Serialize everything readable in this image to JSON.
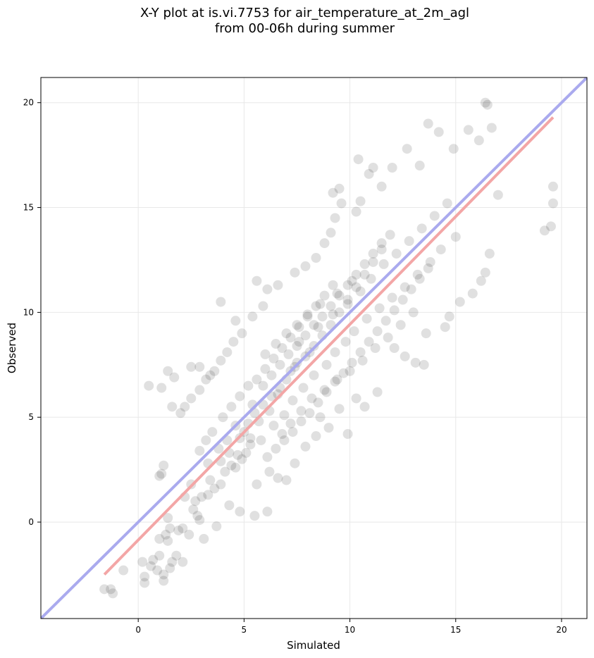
{
  "chart_data": {
    "type": "scatter",
    "title_lines": [
      "X-Y plot at is.vi.7753 for air_temperature_at_2m_agl",
      "from 00-06h during summer"
    ],
    "xlabel": "Simulated",
    "ylabel": "Observed",
    "xlim": [
      -4.6,
      21.2
    ],
    "ylim": [
      -4.6,
      21.2
    ],
    "xticks": [
      0,
      5,
      10,
      15,
      20
    ],
    "yticks": [
      0,
      5,
      10,
      15,
      20
    ],
    "grid": true,
    "point_color": "#000000",
    "point_alpha": 0.12,
    "identity_line": {
      "x": [
        -4.6,
        21.2
      ],
      "y": [
        -4.6,
        21.2
      ],
      "color": "#aaaaee"
    },
    "regression_line": {
      "x": [
        -1.6,
        19.6
      ],
      "y": [
        -2.5,
        19.3
      ],
      "color": "#f3a6a6"
    },
    "series": [
      {
        "points": [
          [
            -1.6,
            -3.2
          ],
          [
            -1.2,
            -3.4
          ],
          [
            -1.3,
            -3.2
          ],
          [
            -0.7,
            -2.3
          ],
          [
            0.2,
            -1.9
          ],
          [
            0.3,
            -2.6
          ],
          [
            0.3,
            -2.9
          ],
          [
            0.6,
            -2.1
          ],
          [
            0.7,
            -1.8
          ],
          [
            0.9,
            -2.3
          ],
          [
            1.0,
            -1.6
          ],
          [
            1.2,
            -2.5
          ],
          [
            1.2,
            -2.8
          ],
          [
            1.5,
            -2.2
          ],
          [
            1.6,
            -1.9
          ],
          [
            1.8,
            -1.6
          ],
          [
            2.1,
            -1.9
          ],
          [
            1.0,
            -0.8
          ],
          [
            1.4,
            -0.9
          ],
          [
            1.3,
            -0.6
          ],
          [
            1.5,
            -0.3
          ],
          [
            1.9,
            -0.4
          ],
          [
            2.1,
            -0.3
          ],
          [
            2.4,
            -0.6
          ],
          [
            1.4,
            0.2
          ],
          [
            1.0,
            2.2
          ],
          [
            1.1,
            2.3
          ],
          [
            1.2,
            2.7
          ],
          [
            2.6,
            0.6
          ],
          [
            2.8,
            0.3
          ],
          [
            3.1,
            -0.8
          ],
          [
            3.7,
            -0.2
          ],
          [
            2.9,
            0.1
          ],
          [
            2.7,
            1.0
          ],
          [
            3.0,
            1.2
          ],
          [
            3.3,
            1.3
          ],
          [
            3.6,
            1.6
          ],
          [
            3.9,
            1.8
          ],
          [
            4.1,
            2.4
          ],
          [
            4.4,
            2.7
          ],
          [
            4.6,
            2.6
          ],
          [
            4.9,
            3.0
          ],
          [
            5.1,
            3.3
          ],
          [
            5.3,
            3.7
          ],
          [
            4.3,
            0.8
          ],
          [
            4.8,
            0.5
          ],
          [
            5.5,
            0.3
          ],
          [
            6.1,
            0.5
          ],
          [
            5.6,
            1.8
          ],
          [
            6.2,
            2.4
          ],
          [
            6.6,
            2.1
          ],
          [
            7.0,
            2.0
          ],
          [
            7.4,
            2.8
          ],
          [
            7.9,
            3.6
          ],
          [
            8.4,
            4.1
          ],
          [
            9.0,
            4.5
          ],
          [
            9.9,
            4.2
          ],
          [
            8.6,
            5.0
          ],
          [
            9.5,
            5.4
          ],
          [
            10.3,
            5.9
          ],
          [
            10.7,
            5.5
          ],
          [
            11.3,
            6.2
          ],
          [
            2.2,
            5.5
          ],
          [
            2.5,
            5.9
          ],
          [
            2.9,
            6.3
          ],
          [
            3.2,
            6.8
          ],
          [
            3.6,
            7.2
          ],
          [
            3.9,
            7.7
          ],
          [
            4.2,
            8.1
          ],
          [
            4.5,
            8.6
          ],
          [
            4.9,
            9.0
          ],
          [
            0.5,
            6.5
          ],
          [
            1.1,
            6.4
          ],
          [
            1.6,
            5.5
          ],
          [
            2.0,
            5.2
          ],
          [
            1.4,
            7.2
          ],
          [
            1.7,
            6.9
          ],
          [
            2.5,
            7.4
          ],
          [
            2.9,
            7.4
          ],
          [
            3.4,
            7.0
          ],
          [
            3.9,
            10.5
          ],
          [
            4.6,
            9.6
          ],
          [
            5.4,
            9.8
          ],
          [
            5.9,
            10.3
          ],
          [
            6.1,
            11.1
          ],
          [
            5.6,
            11.5
          ],
          [
            6.6,
            11.3
          ],
          [
            7.4,
            11.9
          ],
          [
            7.9,
            12.2
          ],
          [
            8.4,
            12.6
          ],
          [
            8.8,
            13.3
          ],
          [
            9.1,
            13.8
          ],
          [
            9.3,
            14.5
          ],
          [
            9.6,
            15.2
          ],
          [
            9.2,
            15.7
          ],
          [
            9.5,
            15.9
          ],
          [
            10.3,
            14.8
          ],
          [
            10.5,
            15.3
          ],
          [
            10.9,
            16.6
          ],
          [
            11.1,
            16.9
          ],
          [
            10.4,
            17.3
          ],
          [
            11.5,
            16.0
          ],
          [
            12.0,
            16.9
          ],
          [
            12.7,
            17.8
          ],
          [
            13.3,
            17.0
          ],
          [
            13.7,
            19.0
          ],
          [
            14.2,
            18.6
          ],
          [
            14.9,
            17.8
          ],
          [
            15.6,
            18.7
          ],
          [
            16.1,
            18.2
          ],
          [
            16.4,
            20.0
          ],
          [
            16.5,
            19.9
          ],
          [
            16.7,
            18.8
          ],
          [
            17.0,
            15.6
          ],
          [
            16.6,
            12.8
          ],
          [
            16.4,
            11.9
          ],
          [
            16.2,
            11.5
          ],
          [
            15.8,
            10.9
          ],
          [
            15.2,
            10.5
          ],
          [
            14.7,
            9.8
          ],
          [
            14.5,
            9.3
          ],
          [
            13.6,
            9.0
          ],
          [
            13.1,
            7.6
          ],
          [
            13.5,
            7.5
          ],
          [
            12.6,
            7.9
          ],
          [
            12.1,
            8.3
          ],
          [
            19.2,
            13.9
          ],
          [
            19.5,
            14.1
          ],
          [
            19.6,
            15.2
          ],
          [
            19.6,
            16.0
          ],
          [
            8.1,
            8.1
          ],
          [
            7.5,
            7.6
          ],
          [
            7.2,
            7.2
          ],
          [
            6.7,
            6.4
          ],
          [
            6.3,
            6.0
          ],
          [
            5.9,
            5.6
          ],
          [
            5.5,
            5.2
          ],
          [
            5.2,
            4.7
          ],
          [
            7.6,
            8.6
          ],
          [
            8.5,
            9.3
          ],
          [
            9.2,
            9.9
          ],
          [
            9.9,
            10.4
          ],
          [
            10.5,
            11.0
          ],
          [
            11.0,
            11.6
          ],
          [
            11.6,
            12.3
          ],
          [
            12.2,
            12.8
          ],
          [
            12.8,
            13.4
          ],
          [
            13.4,
            14.0
          ],
          [
            14.0,
            14.6
          ],
          [
            14.6,
            15.2
          ],
          [
            6.0,
            8.0
          ],
          [
            6.5,
            8.5
          ],
          [
            7.0,
            9.0
          ],
          [
            7.5,
            9.4
          ],
          [
            8.0,
            9.9
          ],
          [
            8.6,
            10.4
          ],
          [
            9.4,
            10.9
          ],
          [
            10.1,
            11.5
          ],
          [
            6.8,
            4.2
          ],
          [
            7.2,
            4.7
          ],
          [
            7.7,
            5.3
          ],
          [
            8.2,
            5.9
          ],
          [
            8.8,
            6.3
          ],
          [
            9.4,
            6.8
          ],
          [
            10.0,
            7.2
          ],
          [
            10.6,
            7.7
          ],
          [
            11.2,
            8.3
          ],
          [
            11.8,
            8.8
          ],
          [
            12.4,
            9.4
          ],
          [
            13.0,
            10.0
          ],
          [
            4.6,
            4.6
          ],
          [
            5.0,
            4.3
          ],
          [
            5.8,
            3.9
          ],
          [
            6.4,
            4.6
          ],
          [
            6.9,
            5.1
          ],
          [
            7.3,
            5.8
          ],
          [
            7.8,
            6.4
          ],
          [
            8.3,
            7.0
          ],
          [
            8.9,
            7.5
          ],
          [
            9.3,
            8.1
          ],
          [
            9.8,
            8.6
          ],
          [
            10.2,
            9.1
          ],
          [
            10.8,
            9.7
          ],
          [
            11.4,
            10.2
          ],
          [
            12.0,
            10.7
          ],
          [
            12.6,
            11.2
          ],
          [
            13.2,
            11.8
          ],
          [
            13.8,
            12.4
          ],
          [
            14.3,
            13.0
          ],
          [
            15.0,
            13.6
          ],
          [
            3.8,
            3.5
          ],
          [
            4.2,
            3.9
          ],
          [
            4.7,
            3.2
          ],
          [
            5.3,
            4.0
          ],
          [
            5.7,
            4.8
          ],
          [
            6.2,
            5.3
          ],
          [
            6.6,
            6.1
          ],
          [
            7.0,
            6.8
          ],
          [
            7.4,
            7.4
          ],
          [
            7.9,
            7.9
          ],
          [
            8.3,
            8.4
          ],
          [
            8.7,
            8.9
          ],
          [
            9.1,
            9.4
          ],
          [
            9.5,
            10.0
          ],
          [
            9.9,
            10.6
          ],
          [
            10.3,
            11.2
          ],
          [
            10.7,
            11.8
          ],
          [
            11.1,
            12.4
          ],
          [
            11.5,
            13.0
          ],
          [
            11.9,
            13.7
          ],
          [
            5.6,
            6.8
          ],
          [
            6.0,
            7.3
          ],
          [
            6.4,
            7.8
          ],
          [
            6.8,
            8.3
          ],
          [
            7.2,
            8.8
          ],
          [
            7.6,
            9.3
          ],
          [
            8.0,
            9.8
          ],
          [
            8.4,
            10.3
          ],
          [
            8.8,
            10.8
          ],
          [
            9.2,
            11.3
          ],
          [
            4.0,
            5.0
          ],
          [
            4.4,
            5.5
          ],
          [
            4.8,
            6.0
          ],
          [
            5.2,
            6.5
          ],
          [
            3.5,
            4.3
          ],
          [
            3.2,
            3.9
          ],
          [
            2.9,
            3.4
          ],
          [
            3.3,
            2.8
          ],
          [
            2.5,
            1.8
          ],
          [
            2.2,
            1.2
          ],
          [
            3.4,
            2.0
          ],
          [
            3.9,
            2.9
          ],
          [
            4.3,
            3.3
          ],
          [
            4.8,
            4.0
          ],
          [
            5.4,
            5.6
          ],
          [
            5.9,
            6.5
          ],
          [
            6.3,
            7.0
          ],
          [
            6.7,
            7.5
          ],
          [
            7.1,
            8.0
          ],
          [
            7.5,
            8.4
          ],
          [
            7.9,
            8.9
          ],
          [
            8.3,
            9.4
          ],
          [
            8.7,
            9.8
          ],
          [
            9.1,
            10.3
          ],
          [
            9.5,
            10.8
          ],
          [
            9.9,
            11.3
          ],
          [
            10.3,
            11.8
          ],
          [
            10.7,
            12.3
          ],
          [
            11.1,
            12.8
          ],
          [
            11.5,
            13.3
          ],
          [
            6.1,
            3.1
          ],
          [
            6.5,
            3.5
          ],
          [
            6.9,
            3.9
          ],
          [
            7.3,
            4.3
          ],
          [
            7.7,
            4.8
          ],
          [
            8.1,
            5.2
          ],
          [
            8.5,
            5.7
          ],
          [
            8.9,
            6.2
          ],
          [
            9.3,
            6.7
          ],
          [
            9.7,
            7.1
          ],
          [
            10.1,
            7.6
          ],
          [
            10.5,
            8.1
          ],
          [
            10.9,
            8.6
          ],
          [
            11.3,
            9.1
          ],
          [
            11.7,
            9.6
          ],
          [
            12.1,
            10.1
          ],
          [
            12.5,
            10.6
          ],
          [
            12.9,
            11.1
          ],
          [
            13.3,
            11.6
          ],
          [
            13.7,
            12.1
          ]
        ]
      }
    ]
  }
}
